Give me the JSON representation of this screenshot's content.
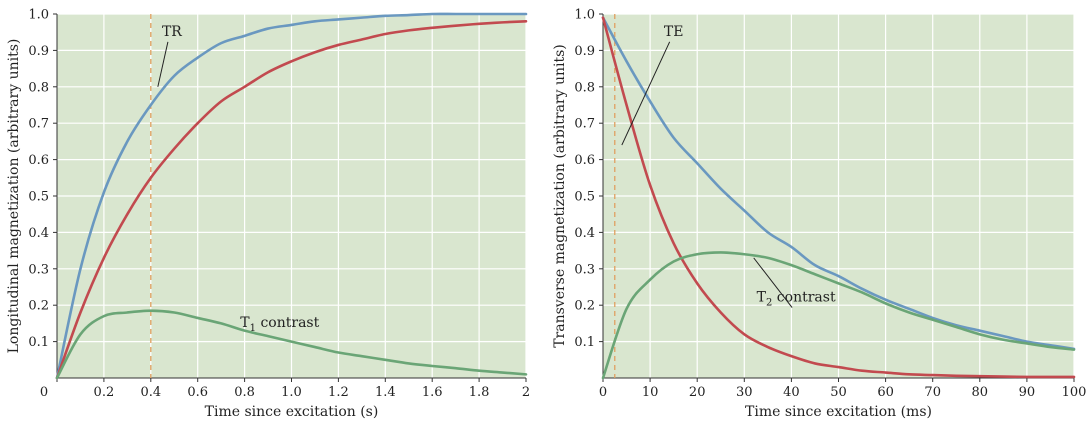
{
  "chart_data": [
    {
      "type": "line",
      "xlabel": "Time since excitation (s)",
      "ylabel": "Longitudinal magnetization (arbitrary units)",
      "xlim": [
        0,
        2
      ],
      "ylim": [
        0,
        1.0
      ],
      "xticks": [
        0,
        0.2,
        0.4,
        0.6,
        0.8,
        1.0,
        1.2,
        1.4,
        1.6,
        1.8,
        2
      ],
      "xtick_labels": [
        "0",
        "0.2",
        "0.4",
        "0.6",
        "0.8",
        "1.0",
        "1.2",
        "1.4",
        "1.6",
        "1.8",
        "2"
      ],
      "yticks": [
        0.1,
        0.2,
        0.3,
        0.4,
        0.5,
        0.6,
        0.7,
        0.8,
        0.9,
        1.0
      ],
      "ytick_labels": [
        "0.1",
        "0.2",
        "0.3",
        "0.4",
        "0.5",
        "0.6",
        "0.7",
        "0.8",
        "0.9",
        "1.0"
      ],
      "origin_label": "0",
      "grid": true,
      "background": "#d9e6cf",
      "x": [
        0,
        0.1,
        0.2,
        0.3,
        0.4,
        0.5,
        0.6,
        0.7,
        0.8,
        0.9,
        1.0,
        1.1,
        1.2,
        1.3,
        1.4,
        1.5,
        1.6,
        1.7,
        1.8,
        1.9,
        2.0
      ],
      "series": [
        {
          "color": "#6a98c0",
          "values": [
            0,
            0.3,
            0.51,
            0.65,
            0.75,
            0.83,
            0.88,
            0.92,
            0.94,
            0.96,
            0.97,
            0.98,
            0.985,
            0.99,
            0.995,
            0.997,
            1.0,
            1.0,
            1.0,
            1.0,
            1.0
          ]
        },
        {
          "color": "#c24a4f",
          "values": [
            0,
            0.18,
            0.33,
            0.45,
            0.55,
            0.63,
            0.7,
            0.76,
            0.8,
            0.84,
            0.87,
            0.895,
            0.915,
            0.93,
            0.945,
            0.955,
            0.962,
            0.968,
            0.973,
            0.977,
            0.98
          ]
        },
        {
          "color": "#6aa576",
          "values": [
            0,
            0.12,
            0.17,
            0.18,
            0.185,
            0.18,
            0.165,
            0.15,
            0.13,
            0.115,
            0.1,
            0.085,
            0.07,
            0.06,
            0.05,
            0.04,
            0.033,
            0.027,
            0.02,
            0.015,
            0.01
          ]
        }
      ],
      "marker": {
        "label": "TR",
        "x": 0.4,
        "color": "#e0a060"
      },
      "annotations": [
        {
          "text": "TR",
          "x": 0.49,
          "y": 0.94,
          "leader_to": [
            0.43,
            0.8
          ]
        },
        {
          "text": "T",
          "sub": "1",
          "rest": " contrast",
          "x": 0.95,
          "y": 0.14,
          "leader_to": null
        }
      ]
    },
    {
      "type": "line",
      "xlabel": "Time since excitation (ms)",
      "ylabel": "Transverse magnetization (arbitrary units)",
      "xlim": [
        0,
        100
      ],
      "ylim": [
        0,
        1.0
      ],
      "xticks": [
        0,
        10,
        20,
        30,
        40,
        50,
        60,
        70,
        80,
        90,
        100
      ],
      "xtick_labels": [
        "0",
        "10",
        "20",
        "30",
        "40",
        "50",
        "60",
        "70",
        "80",
        "90",
        "100"
      ],
      "yticks": [
        0.1,
        0.2,
        0.3,
        0.4,
        0.5,
        0.6,
        0.7,
        0.8,
        0.9,
        1.0
      ],
      "ytick_labels": [
        "0.1",
        "0.2",
        "0.3",
        "0.4",
        "0.5",
        "0.6",
        "0.7",
        "0.8",
        "0.9",
        "1.0"
      ],
      "origin_label": "",
      "grid": true,
      "background": "#d9e6cf",
      "x": [
        0,
        5,
        10,
        15,
        20,
        25,
        30,
        35,
        40,
        45,
        50,
        55,
        60,
        65,
        70,
        75,
        80,
        85,
        90,
        95,
        100
      ],
      "series": [
        {
          "color": "#6a98c0",
          "values": [
            0.99,
            0.87,
            0.76,
            0.66,
            0.59,
            0.52,
            0.46,
            0.4,
            0.36,
            0.31,
            0.28,
            0.245,
            0.215,
            0.19,
            0.165,
            0.145,
            0.13,
            0.115,
            0.1,
            0.09,
            0.08
          ]
        },
        {
          "color": "#c24a4f",
          "values": [
            0.99,
            0.75,
            0.53,
            0.37,
            0.26,
            0.18,
            0.12,
            0.085,
            0.06,
            0.04,
            0.03,
            0.02,
            0.015,
            0.01,
            0.008,
            0.006,
            0.005,
            0.004,
            0.003,
            0.003,
            0.003
          ]
        },
        {
          "color": "#6aa576",
          "values": [
            0,
            0.19,
            0.27,
            0.32,
            0.34,
            0.345,
            0.34,
            0.33,
            0.31,
            0.285,
            0.26,
            0.235,
            0.205,
            0.18,
            0.16,
            0.14,
            0.12,
            0.105,
            0.095,
            0.085,
            0.078
          ]
        }
      ],
      "marker": {
        "label": "TE",
        "x": 2.5,
        "color": "#e0a060"
      },
      "annotations": [
        {
          "text": "TE",
          "x": 15,
          "y": 0.94,
          "leader_to": [
            4,
            0.64
          ]
        },
        {
          "text": "T",
          "sub": "2",
          "rest": " contrast",
          "x": 41,
          "y": 0.21,
          "leader_to": [
            32,
            0.33
          ]
        }
      ]
    }
  ]
}
